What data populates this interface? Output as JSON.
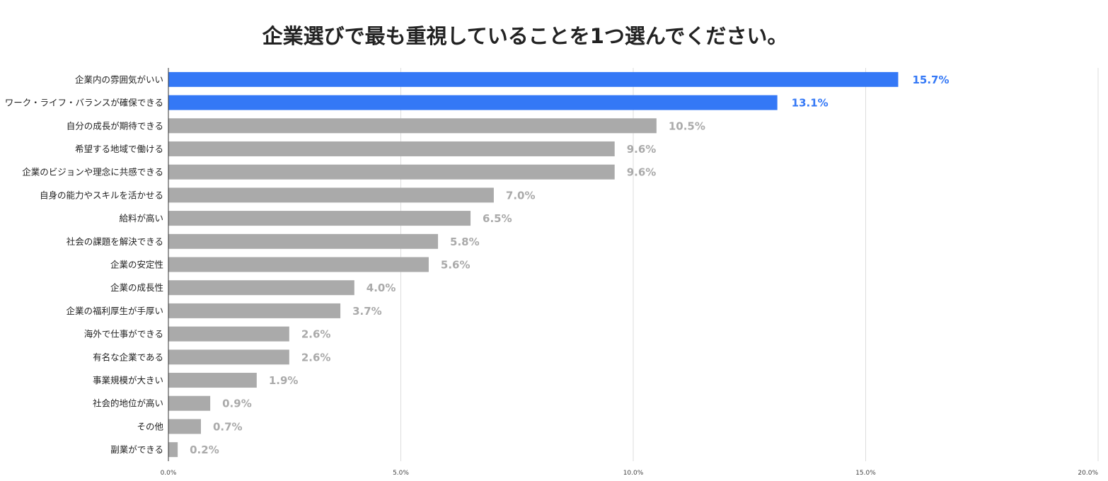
{
  "chart_data": {
    "type": "bar",
    "orientation": "horizontal",
    "title": "企業選びで最も重視していることを1つ選んでください。",
    "xlabel": "",
    "ylabel": "",
    "xlim": [
      0,
      20
    ],
    "grid": true,
    "ticks": [
      0,
      5,
      10,
      15,
      20
    ],
    "tick_labels": [
      "0.0%",
      "5.0%",
      "10.0%",
      "15.0%",
      "20.0%"
    ],
    "categories": [
      "企業内の雰囲気がいい",
      "ワーク・ライフ・バランスが確保できる",
      "自分の成長が期待できる",
      "希望する地域で働ける",
      "企業のビジョンや理念に共感できる",
      "自身の能力やスキルを活かせる",
      "給料が高い",
      "社会の課題を解決できる",
      "企業の安定性",
      "企業の成長性",
      "企業の福利厚生が手厚い",
      "海外で仕事ができる",
      "有名な企業である",
      "事業規模が大きい",
      "社会的地位が高い",
      "その他",
      "副業ができる"
    ],
    "values": [
      15.7,
      13.1,
      10.5,
      9.6,
      9.6,
      7.0,
      6.5,
      5.8,
      5.6,
      4.0,
      3.7,
      2.6,
      2.6,
      1.9,
      0.9,
      0.7,
      0.2
    ],
    "value_labels": [
      "15.7%",
      "13.1%",
      "10.5%",
      "9.6%",
      "9.6%",
      "7.0%",
      "6.5%",
      "5.8%",
      "5.6%",
      "4.0%",
      "3.7%",
      "2.6%",
      "2.6%",
      "1.9%",
      "0.9%",
      "0.7%",
      "0.2%"
    ],
    "highlight_count": 2,
    "colors": {
      "highlight": "#3478f6",
      "default": "#aaaaaa",
      "highlight_label": "#3478f6",
      "default_label": "#aaaaaa"
    }
  }
}
